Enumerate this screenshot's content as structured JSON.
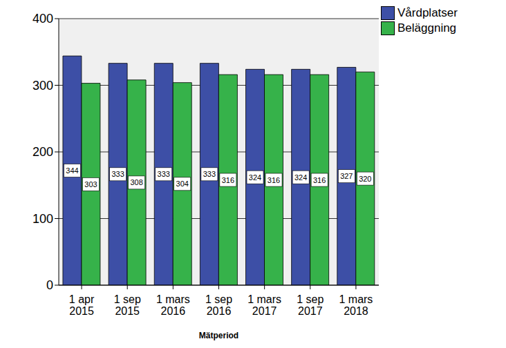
{
  "chart_data": {
    "type": "bar",
    "x_label": "Mätperiod",
    "categories": [
      "1 apr 2015",
      "1 sep 2015",
      "1 mars 2016",
      "1 sep 2016",
      "1 mars 2017",
      "1 sep 2017",
      "1 mars 2018"
    ],
    "series": [
      {
        "name": "Vårdplatser",
        "color": "#3d4fa6",
        "values": [
          344,
          333,
          333,
          333,
          324,
          324,
          327
        ]
      },
      {
        "name": "Beläggning",
        "color": "#36b24a",
        "values": [
          303,
          308,
          304,
          316,
          316,
          316,
          320
        ]
      }
    ],
    "ylim": [
      0,
      400
    ],
    "yticks": [
      0,
      100,
      200,
      300,
      400
    ],
    "grid": true,
    "legend": "upper right",
    "data_labels": true
  }
}
